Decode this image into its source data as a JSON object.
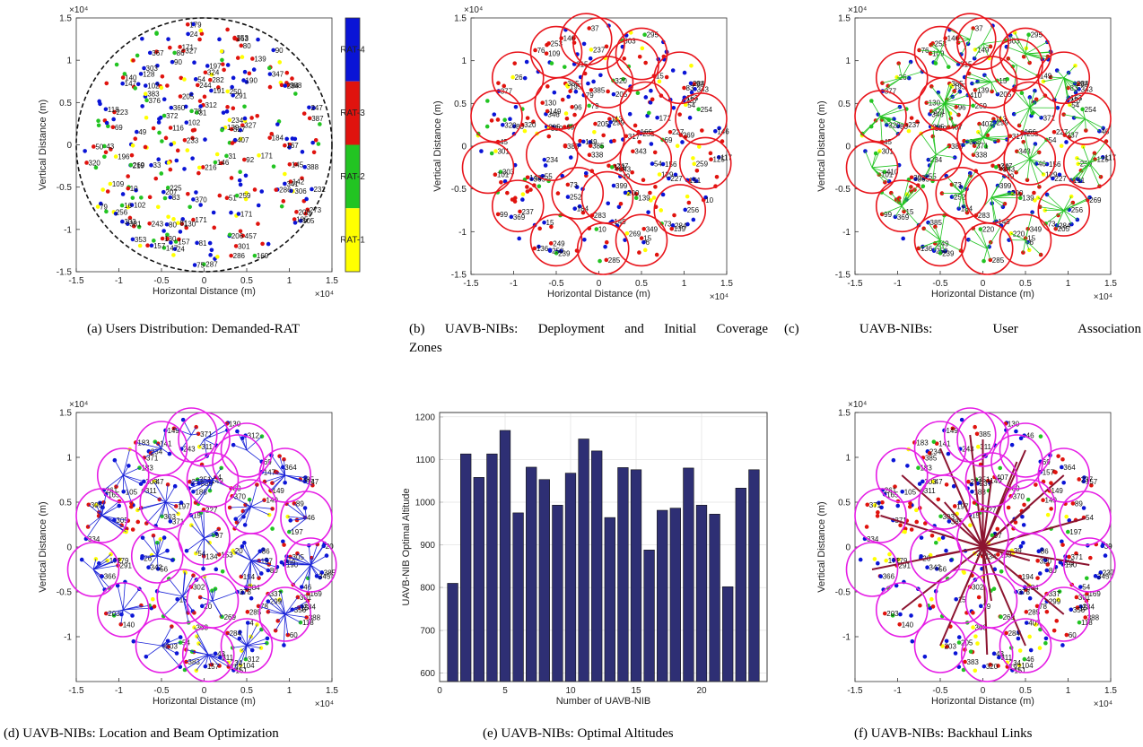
{
  "captions": {
    "a": "(a) Users Distribution: Demanded-RAT",
    "b1": "(b) UAVB-NIBs: Deployment and Initial Coverage",
    "b2": "Zones",
    "c": "(c) UAVB-NIBs: User Association",
    "d": "(d) UAVB-NIBs: Location and Beam Optimization",
    "e": "(e) UAVB-NIBs: Optimal Altitudes",
    "f": "(f) UAVB-NIBs: Backhaul Links"
  },
  "colors": {
    "rat4": "#0a14d6",
    "rat3": "#e0130e",
    "rat2": "#22c422",
    "rat1": "#ffff00",
    "coverage_circle": "#e8141b",
    "optimized_circle": "#e51ee5",
    "association_line": "#22c422",
    "beam_line": "#1a23d8",
    "backhaul_line": "#8c1430",
    "bar_fill": "#2e2f74"
  },
  "chart_data": [
    {
      "id": "a",
      "type": "scatter",
      "xlabel": "Horizontal Distance (m)",
      "ylabel": "Vertical Distance (m)",
      "xlim": [
        -1.5,
        1.5
      ],
      "ylim": [
        -1.5,
        1.5
      ],
      "x_ticks": [
        "-1.5",
        "-1",
        "-0.5",
        "0",
        "0.5",
        "1",
        "1.5"
      ],
      "y_ticks": [
        "-1.5",
        "-1",
        "-0.5",
        "0",
        "0.5",
        "1",
        "1.5"
      ],
      "x_exponent": "×10⁴",
      "y_exponent": "×10⁴",
      "boundary_radius": 1.5,
      "colorbar": [
        "RAT-4",
        "RAT-3",
        "RAT-2",
        "RAT-1"
      ],
      "sample_labels": [
        "80",
        "90",
        "130",
        "327",
        "157",
        "147",
        "139",
        "171",
        "102",
        "457",
        "167",
        "69",
        "306",
        "54",
        "312",
        "303",
        "49",
        "10",
        "269",
        "320",
        "407",
        "105",
        "205",
        "184",
        "273",
        "24",
        "43",
        "179"
      ]
    },
    {
      "id": "b",
      "type": "scatter",
      "xlabel": "Horizontal Distance (m)",
      "ylabel": "Vertical Distance (m)",
      "xlim": [
        -1.5,
        1.5
      ],
      "ylim": [
        -1.5,
        1.5
      ],
      "x_ticks": [
        "-1.5",
        "-1",
        "-0.5",
        "0",
        "0.5",
        "1",
        "1.5"
      ],
      "y_ticks": [
        "-1.5",
        "-1",
        "-0.5",
        "0",
        "0.5",
        "1",
        "1.5"
      ],
      "x_exponent": "×10⁴",
      "y_exponent": "×10⁴",
      "sample_labels": [
        "237",
        "15",
        "149",
        "385",
        "171",
        "139",
        "205",
        "69",
        "54",
        "146",
        "303",
        "79",
        "10",
        "269",
        "320"
      ]
    },
    {
      "id": "c",
      "type": "scatter",
      "xlabel": "Horizontal Distance (m)",
      "ylabel": "Vertical Distance (m)",
      "xlim": [
        -1.5,
        1.5
      ],
      "ylim": [
        -1.5,
        1.5
      ],
      "x_ticks": [
        "-1.5",
        "-1",
        "-0.5",
        "0",
        "0.5",
        "1",
        "1.5"
      ],
      "y_ticks": [
        "-1.5",
        "-1",
        "-0.5",
        "0",
        "0.5",
        "1",
        "1.5"
      ],
      "x_exponent": "×10⁴",
      "y_exponent": "×10⁴",
      "sample_labels": [
        "237",
        "15",
        "149",
        "385",
        "371",
        "139",
        "205",
        "407",
        "54",
        "46",
        "303",
        "410",
        "269",
        "220"
      ]
    },
    {
      "id": "d",
      "type": "scatter",
      "xlabel": "Horizontal Distance (m)",
      "ylabel": "Vertical Distance (m)",
      "xlim": [
        -1.5,
        1.5
      ],
      "ylim": [
        -1.5,
        1.5
      ],
      "x_ticks": [
        "-1.5",
        "-1",
        "-0.5",
        "0",
        "0.5",
        "1",
        "1.5"
      ],
      "y_ticks": [
        "-1",
        "-0.5",
        "0",
        "0.5",
        "1",
        "1.5"
      ],
      "x_exponent": "×10⁴",
      "y_exponent": "×10⁴",
      "sample_labels": [
        "15",
        "149",
        "385",
        "371",
        "305",
        "20",
        "54",
        "4",
        "46",
        "312",
        "303",
        "269",
        "157",
        "147"
      ]
    },
    {
      "id": "e",
      "type": "bar",
      "xlabel": "Number of UAVB-NIB",
      "ylabel": "UAVB-NIB Optimal Altitude",
      "xlim": [
        0,
        25
      ],
      "ylim": [
        580,
        1210
      ],
      "x_ticks": [
        "0",
        "5",
        "10",
        "15",
        "20"
      ],
      "y_ticks": [
        "600",
        "700",
        "800",
        "900",
        "1000",
        "1100",
        "1200"
      ],
      "grid": true,
      "categories": [
        1,
        2,
        3,
        4,
        5,
        6,
        7,
        8,
        9,
        10,
        11,
        12,
        13,
        14,
        15,
        16,
        17,
        18,
        19,
        20,
        21,
        22,
        23,
        24
      ],
      "values": [
        810,
        1113,
        1058,
        1113,
        1168,
        975,
        1082,
        1053,
        993,
        1068,
        1148,
        1120,
        964,
        1081,
        1076,
        888,
        981,
        986,
        1080,
        993,
        972,
        802,
        1033,
        1076
      ]
    },
    {
      "id": "f",
      "type": "scatter",
      "xlabel": "Horizontal Distance (m)",
      "ylabel": "Vertical Distance (m)",
      "xlim": [
        -1.5,
        1.5
      ],
      "ylim": [
        -1.5,
        1.5
      ],
      "x_ticks": [
        "-1.5",
        "-1",
        "-0.5",
        "0",
        "0.5",
        "1",
        "1.5"
      ],
      "y_ticks": [
        "-1",
        "-0.5",
        "0",
        "0.5",
        "1",
        "1.5"
      ],
      "x_exponent": "×10⁴",
      "y_exponent": "×10⁴",
      "sample_labels": [
        "15",
        "149",
        "237",
        "385",
        "371",
        "39",
        "205",
        "407",
        "54",
        "46",
        "303",
        "269",
        "320",
        "157"
      ]
    }
  ]
}
